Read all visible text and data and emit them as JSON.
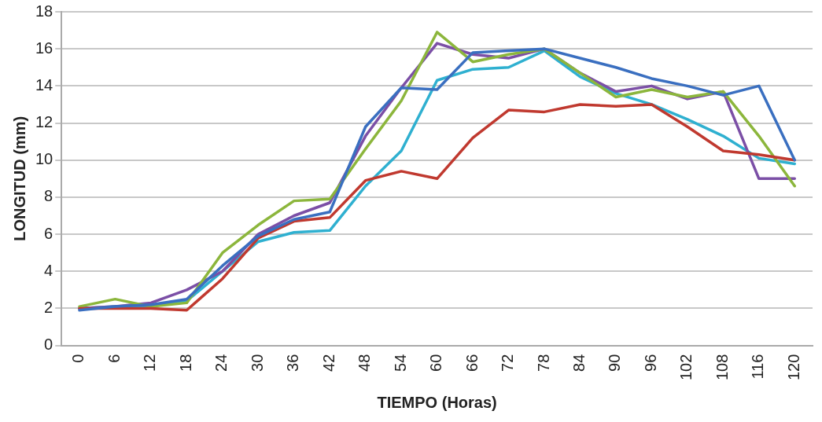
{
  "chart_data": {
    "type": "line",
    "xlabel": "TIEMPO (Horas)",
    "ylabel": "LONGITUD (mm)",
    "categories": [
      "0",
      "6",
      "12",
      "18",
      "24",
      "30",
      "36",
      "42",
      "48",
      "54",
      "60",
      "66",
      "72",
      "78",
      "84",
      "90",
      "96",
      "102",
      "108",
      "116",
      "120"
    ],
    "series": [
      {
        "color": "#3a6fc0",
        "values": [
          1.9,
          2.1,
          2.2,
          2.5,
          4.3,
          5.9,
          6.8,
          7.2,
          11.8,
          13.9,
          13.8,
          15.8,
          15.9,
          16.0,
          15.5,
          15.0,
          14.4,
          14.0,
          13.5,
          14.0,
          10.0
        ]
      },
      {
        "color": "#c0392f",
        "values": [
          2.0,
          2.0,
          2.0,
          1.9,
          3.6,
          5.8,
          6.7,
          6.9,
          8.9,
          9.4,
          9.0,
          11.2,
          12.7,
          12.6,
          13.0,
          12.9,
          13.0,
          11.8,
          10.5,
          10.3,
          10.0
        ]
      },
      {
        "color": "#8cb63c",
        "values": [
          2.1,
          2.5,
          2.1,
          2.3,
          5.0,
          6.5,
          7.8,
          7.9,
          10.6,
          13.2,
          16.9,
          15.3,
          15.7,
          16.0,
          14.7,
          13.4,
          13.8,
          13.4,
          13.7,
          11.3,
          8.6
        ]
      },
      {
        "color": "#7b4fa6",
        "values": [
          2.0,
          2.1,
          2.3,
          3.0,
          4.0,
          6.0,
          7.0,
          7.7,
          11.3,
          13.9,
          16.3,
          15.7,
          15.5,
          16.0,
          14.7,
          13.7,
          14.0,
          13.3,
          13.7,
          9.0,
          9.0
        ]
      },
      {
        "color": "#2fb0d0",
        "values": [
          2.0,
          2.1,
          2.1,
          2.4,
          4.0,
          5.6,
          6.1,
          6.2,
          8.6,
          10.5,
          14.3,
          14.9,
          15.0,
          15.9,
          14.5,
          13.6,
          13.0,
          12.2,
          11.3,
          10.1,
          9.8
        ]
      }
    ],
    "ylim": [
      0,
      18
    ],
    "yticks": [
      0,
      2,
      4,
      6,
      8,
      10,
      12,
      14,
      16,
      18
    ],
    "grid": "y",
    "legend": false,
    "marker": "none",
    "line_style": "solid"
  }
}
